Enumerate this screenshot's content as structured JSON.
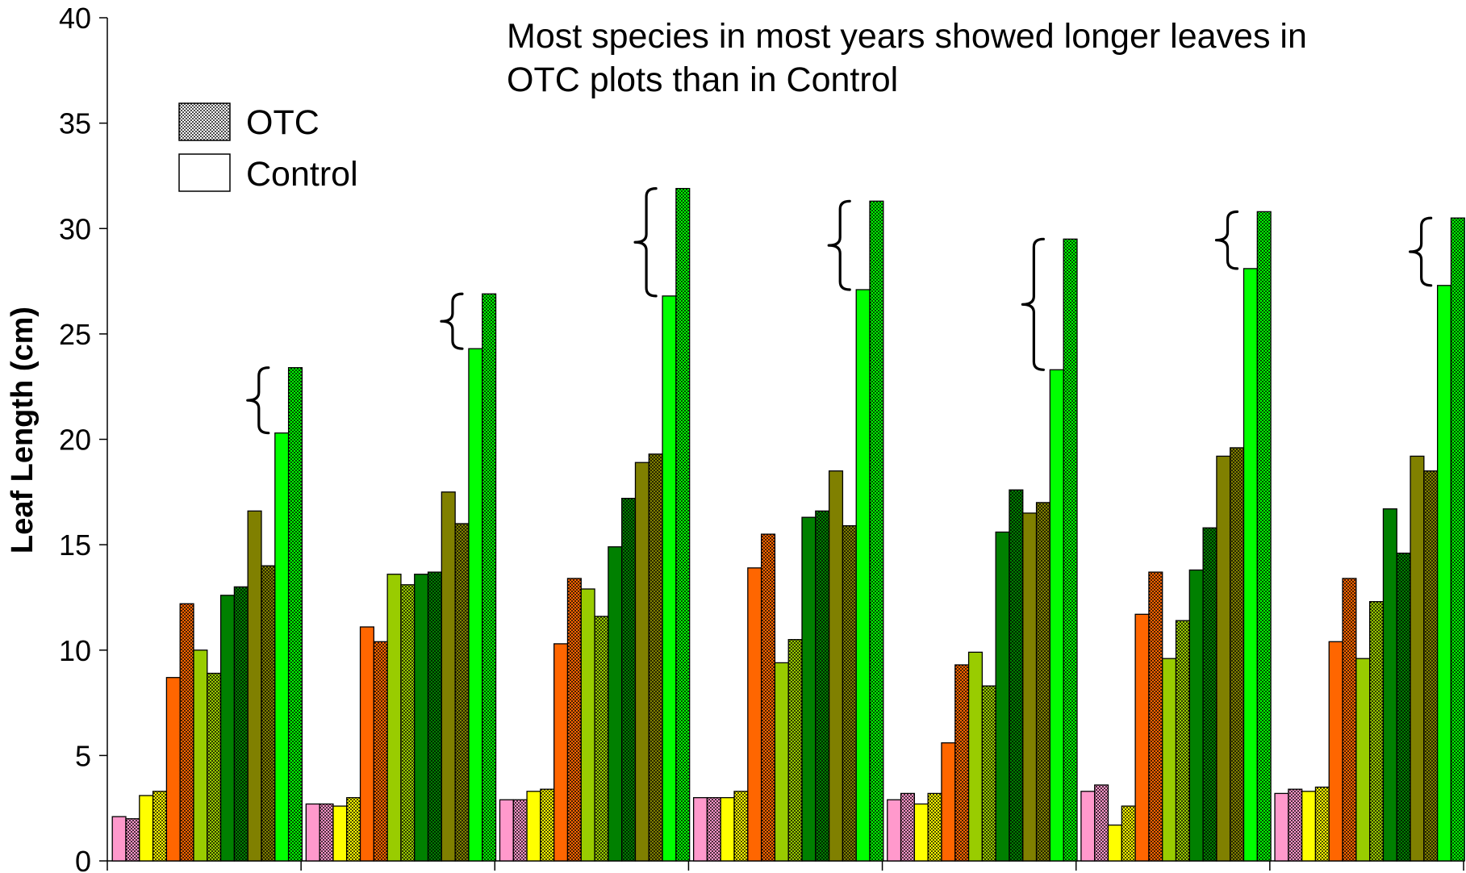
{
  "chart_data": {
    "type": "bar",
    "ylabel": "Leaf Length (cm)",
    "ylim": [
      0,
      40
    ],
    "yticks": [
      0,
      5,
      10,
      15,
      20,
      25,
      30,
      35,
      40
    ],
    "grid": false,
    "legend_position": "top-left",
    "legend": [
      {
        "label": "OTC",
        "pattern": "stippled"
      },
      {
        "label": "Control",
        "pattern": "solid"
      }
    ],
    "annotation": {
      "line1": "Most species in most years showed longer leaves in",
      "line2": "OTC plots than in Control"
    },
    "species_colors": [
      "#ff99cc",
      "#ffff00",
      "#ff6600",
      "#99cc00",
      "#008000",
      "#808000",
      "#00ff00"
    ],
    "groups": [
      {
        "values": [
          2.1,
          2.0,
          3.1,
          3.3,
          8.7,
          12.2,
          10.0,
          8.9,
          12.6,
          13.0,
          16.6,
          14.0,
          20.3,
          23.4
        ]
      },
      {
        "values": [
          2.7,
          2.7,
          2.6,
          3.0,
          11.1,
          10.4,
          13.6,
          13.1,
          13.6,
          13.7,
          17.5,
          16.0,
          24.3,
          26.9
        ]
      },
      {
        "values": [
          2.9,
          2.9,
          3.3,
          3.4,
          10.3,
          13.4,
          12.9,
          11.6,
          14.9,
          17.2,
          18.9,
          19.3,
          26.8,
          31.9
        ]
      },
      {
        "values": [
          3.0,
          3.0,
          3.0,
          3.3,
          13.9,
          15.5,
          9.4,
          10.5,
          16.3,
          16.6,
          18.5,
          15.9,
          27.1,
          31.3
        ]
      },
      {
        "values": [
          2.9,
          3.2,
          2.7,
          3.2,
          5.6,
          9.3,
          9.9,
          8.3,
          15.6,
          17.6,
          16.5,
          17.0,
          23.3,
          29.5
        ]
      },
      {
        "values": [
          3.3,
          3.6,
          1.7,
          2.6,
          11.7,
          13.7,
          9.6,
          11.4,
          13.8,
          15.8,
          19.2,
          19.6,
          28.1,
          30.8
        ]
      },
      {
        "values": [
          3.2,
          3.4,
          3.3,
          3.5,
          10.4,
          13.4,
          9.6,
          12.3,
          16.7,
          14.6,
          19.2,
          18.5,
          27.3,
          30.5
        ]
      }
    ]
  }
}
